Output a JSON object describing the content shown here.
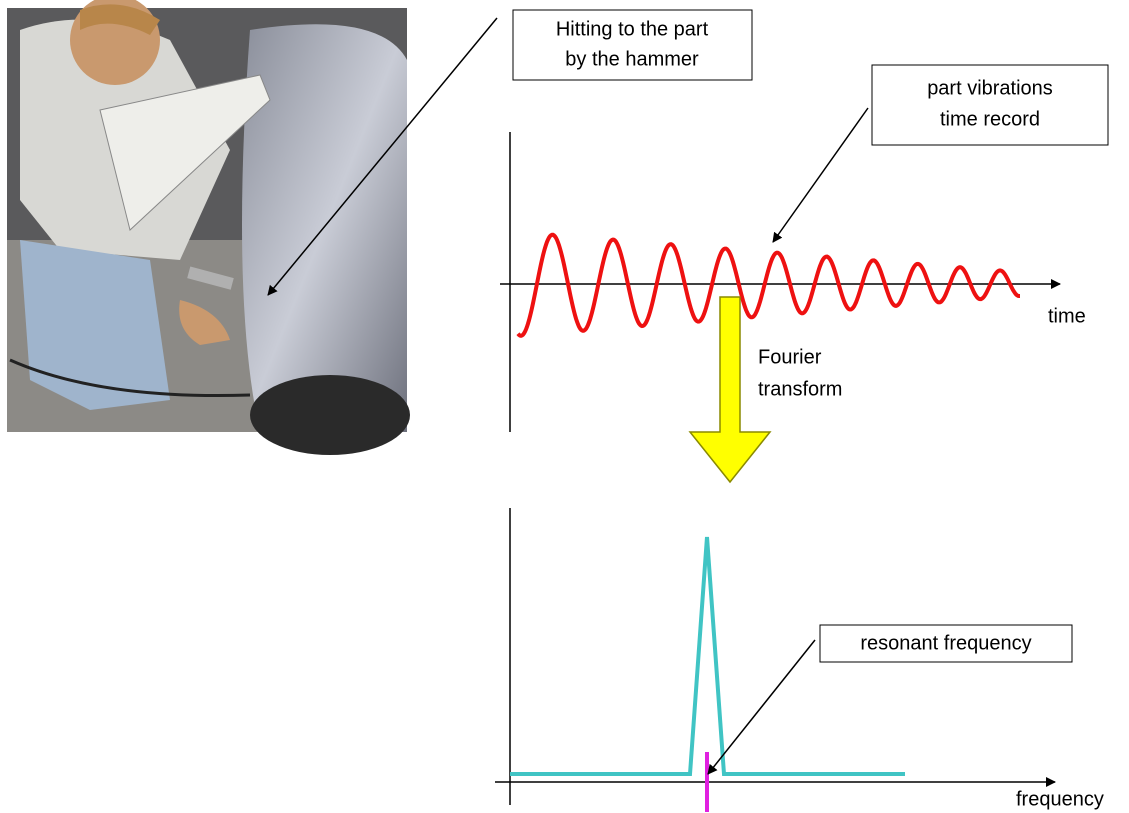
{
  "labels": {
    "hammer_callout": [
      "Hitting to the part",
      "by the hammer"
    ],
    "vibration_callout": [
      "part vibrations",
      "time record"
    ],
    "fourier": [
      "Fourier",
      "transform"
    ],
    "time_axis": "time",
    "frequency_axis": "frequency",
    "resonance_callout": "resonant frequency"
  }
}
